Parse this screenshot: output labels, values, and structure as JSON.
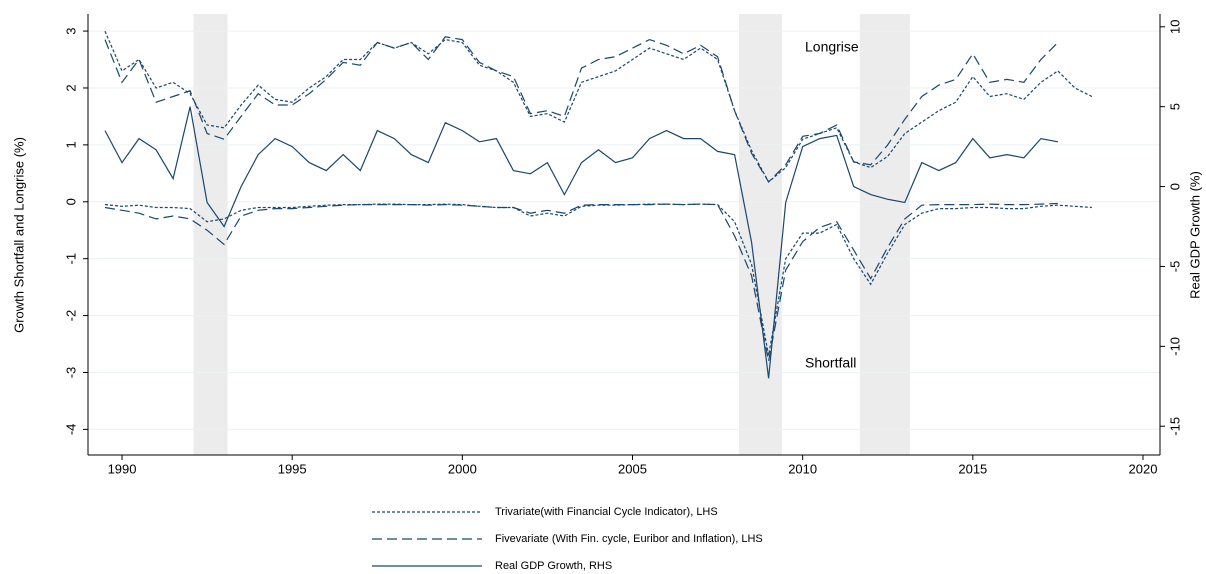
{
  "chart_data": {
    "type": "line",
    "y_label": "Growth Shortfall and Longrise (%)",
    "y2_label": "Real GDP Growth (%)",
    "annotations": [
      "Longrise",
      "Shortfall"
    ],
    "xlim": [
      1989,
      2020.5
    ],
    "xticks": [
      1990,
      1995,
      2000,
      2005,
      2010,
      2015,
      2020
    ],
    "ylim": [
      -4.45,
      3.3
    ],
    "yticks": [
      -4,
      -3,
      -2,
      -1,
      0,
      1,
      2,
      3
    ],
    "y2lim": [
      -16.8,
      10.8
    ],
    "y2ticks": [
      -15,
      -10,
      -5,
      0,
      5,
      10
    ],
    "grid": true,
    "shaded_periods": [
      [
        1992.1,
        1993.1
      ],
      [
        2008.13,
        2009.39
      ],
      [
        2011.68,
        2013.15
      ]
    ],
    "shade_color": "#ececec",
    "x": [
      1989.5,
      1990,
      1990.5,
      1991,
      1991.5,
      1992,
      1992.5,
      1993,
      1993.5,
      1994,
      1994.5,
      1995,
      1995.5,
      1996,
      1996.5,
      1997,
      1997.5,
      1998,
      1998.5,
      1999,
      1999.5,
      2000,
      2000.5,
      2001,
      2001.5,
      2002,
      2002.5,
      2003,
      2003.5,
      2004,
      2004.5,
      2005,
      2005.5,
      2006,
      2006.5,
      2007,
      2007.5,
      2008,
      2008.5,
      2009,
      2009.5,
      2010,
      2010.5,
      2011,
      2011.5,
      2012,
      2012.5,
      2013,
      2013.5,
      2014,
      2014.5,
      2015,
      2015.5,
      2016,
      2016.5,
      2017,
      2017.5,
      2018,
      2018.5
    ],
    "series": [
      {
        "name": "Trivariate(with Financial Cycle Indicator), LHS",
        "color": "#1a476f",
        "line_style": "dotted",
        "values": [
          3.0,
          2.3,
          2.5,
          2.0,
          2.1,
          1.9,
          1.35,
          1.3,
          1.7,
          2.05,
          1.8,
          1.75,
          2.0,
          2.2,
          2.5,
          2.5,
          2.8,
          2.7,
          2.8,
          2.6,
          2.85,
          2.8,
          2.4,
          2.3,
          2.1,
          1.5,
          1.55,
          1.4,
          2.1,
          2.2,
          2.3,
          2.5,
          2.7,
          2.6,
          2.5,
          2.7,
          2.5,
          1.6,
          0.9,
          0.35,
          0.6,
          1.1,
          1.2,
          1.3,
          0.7,
          0.6,
          0.8,
          1.2,
          1.4,
          1.6,
          1.75,
          2.2,
          1.85,
          1.9,
          1.8,
          2.1,
          2.3,
          2.0,
          1.85
        ],
        "values_low": [
          -0.05,
          -0.08,
          -0.06,
          -0.1,
          -0.1,
          -0.12,
          -0.35,
          -0.3,
          -0.15,
          -0.1,
          -0.1,
          -0.1,
          -0.08,
          -0.06,
          -0.05,
          -0.05,
          -0.04,
          -0.04,
          -0.05,
          -0.05,
          -0.04,
          -0.05,
          -0.08,
          -0.1,
          -0.1,
          -0.25,
          -0.2,
          -0.25,
          -0.08,
          -0.06,
          -0.06,
          -0.05,
          -0.04,
          -0.04,
          -0.05,
          -0.04,
          -0.05,
          -0.35,
          -1.1,
          -2.7,
          -1.0,
          -0.55,
          -0.55,
          -0.4,
          -1.0,
          -1.45,
          -0.9,
          -0.4,
          -0.2,
          -0.12,
          -0.12,
          -0.1,
          -0.1,
          -0.12,
          -0.12,
          -0.08,
          -0.06,
          -0.08,
          -0.1
        ]
      },
      {
        "name": "Fivevariate (With Fin. cycle, Euribor and Inflation), LHS",
        "color": "#1a476f",
        "line_style": "dashed",
        "values": [
          2.85,
          2.1,
          2.5,
          1.75,
          1.85,
          1.95,
          1.2,
          1.1,
          1.5,
          1.9,
          1.7,
          1.7,
          1.9,
          2.15,
          2.45,
          2.4,
          2.8,
          2.7,
          2.8,
          2.5,
          2.9,
          2.85,
          2.45,
          2.3,
          2.2,
          1.55,
          1.6,
          1.5,
          2.35,
          2.5,
          2.55,
          2.7,
          2.85,
          2.75,
          2.6,
          2.75,
          2.55,
          1.6,
          0.85,
          0.35,
          0.65,
          1.15,
          1.2,
          1.35,
          0.7,
          0.65,
          1.0,
          1.45,
          1.85,
          2.05,
          2.15,
          2.6,
          2.1,
          2.15,
          2.1,
          2.5,
          2.8,
          null,
          null
        ],
        "values_low": [
          -0.1,
          -0.15,
          -0.2,
          -0.3,
          -0.25,
          -0.3,
          -0.5,
          -0.75,
          -0.25,
          -0.15,
          -0.12,
          -0.12,
          -0.1,
          -0.08,
          -0.06,
          -0.05,
          -0.05,
          -0.05,
          -0.05,
          -0.06,
          -0.05,
          -0.06,
          -0.08,
          -0.1,
          -0.1,
          -0.2,
          -0.15,
          -0.2,
          -0.06,
          -0.05,
          -0.05,
          -0.05,
          -0.05,
          -0.04,
          -0.05,
          -0.04,
          -0.05,
          -0.6,
          -1.3,
          -2.8,
          -1.2,
          -0.7,
          -0.45,
          -0.35,
          -0.85,
          -1.35,
          -0.8,
          -0.3,
          -0.06,
          -0.05,
          -0.05,
          -0.05,
          -0.04,
          -0.05,
          -0.05,
          -0.04,
          -0.03,
          null,
          null
        ]
      },
      {
        "name": "Real GDP Growth, RHS",
        "color": "#1a476f",
        "line_style": "solid",
        "axis": "y2",
        "values": [
          3.5,
          1.5,
          3.0,
          2.3,
          0.5,
          5.0,
          -1.0,
          -2.5,
          0.0,
          2.0,
          3.0,
          2.5,
          1.5,
          1.0,
          2.0,
          1.0,
          3.5,
          3.0,
          2.0,
          1.5,
          4.0,
          3.5,
          2.8,
          3.0,
          1.0,
          0.8,
          1.5,
          -0.5,
          1.5,
          2.3,
          1.5,
          1.8,
          3.0,
          3.5,
          3.0,
          3.0,
          2.2,
          2.0,
          -3.5,
          -12.0,
          -1.0,
          2.5,
          3.0,
          3.2,
          0.0,
          -0.5,
          -0.8,
          -1.0,
          1.5,
          1.0,
          1.5,
          3.0,
          1.8,
          2.0,
          1.8,
          3.0,
          2.8,
          null,
          null
        ]
      }
    ]
  }
}
